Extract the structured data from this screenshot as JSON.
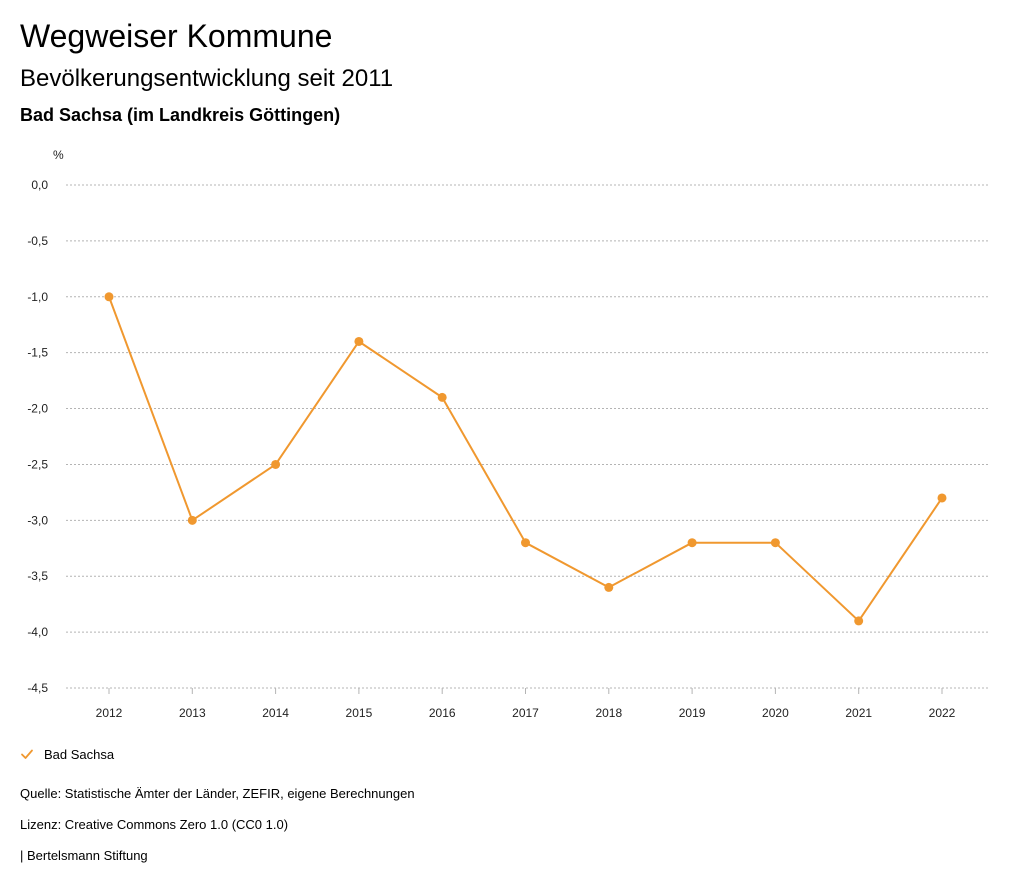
{
  "header": {
    "title": "Wegweiser Kommune",
    "subtitle": "Bevölkerungsentwicklung seit 2011",
    "region": "Bad Sachsa (im Landkreis Göttingen)"
  },
  "chart_data": {
    "type": "line",
    "ylabel": "%",
    "xlabel": "",
    "ylim": [
      -4.5,
      0
    ],
    "yticks": [
      0,
      -0.5,
      -1,
      -1.5,
      -2,
      -2.5,
      -3,
      -3.5,
      -4,
      -4.5
    ],
    "ytick_labels": [
      "0,0",
      "-0,5",
      "-1,0",
      "-1,5",
      "-2,0",
      "-2,5",
      "-3,0",
      "-3,5",
      "-4,0",
      "-4,5"
    ],
    "categories": [
      "2012",
      "2013",
      "2014",
      "2015",
      "2016",
      "2017",
      "2018",
      "2019",
      "2020",
      "2021",
      "2022"
    ],
    "grid": true,
    "legend_position": "bottom-left",
    "series": [
      {
        "name": "Bad Sachsa",
        "color": "#f0982f",
        "values": [
          -1.0,
          -3.0,
          -2.5,
          -1.4,
          -1.9,
          -3.2,
          -3.6,
          -3.2,
          -3.2,
          -3.9,
          -2.8
        ]
      }
    ]
  },
  "legend": {
    "label": "Bad Sachsa",
    "icon": "check-icon"
  },
  "footer": {
    "source": "Quelle: Statistische Ämter der Länder, ZEFIR, eigene Berechnungen",
    "license": "Lizenz: Creative Commons Zero 1.0 (CC0 1.0)",
    "publisher": "| Bertelsmann Stiftung"
  }
}
